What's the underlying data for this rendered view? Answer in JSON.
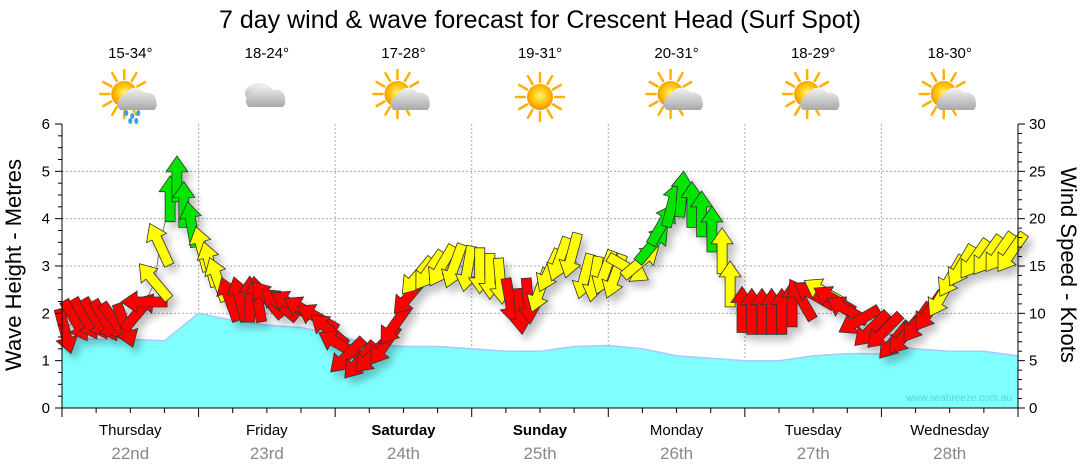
{
  "chart_data": {
    "type": "area",
    "title": "7 day wind & wave forecast for Crescent Head (Surf Spot)",
    "ylabel": "Wave Height - Metres",
    "y2label": "Wind Speed - Knots",
    "ylim": [
      0,
      6
    ],
    "y2lim": [
      0,
      30
    ],
    "yticks": [
      "0",
      "1",
      "2",
      "3",
      "4",
      "5",
      "6"
    ],
    "y2ticks": [
      "0",
      "5",
      "10",
      "15",
      "20",
      "25",
      "30"
    ],
    "grid": true,
    "watermark": "www.seabreeze.com.au",
    "colors": {
      "wave_fill": "#80ffff",
      "wave_line": "#a8c8ff",
      "red": "#ff0000",
      "yellow": "#ffff00",
      "green": "#00e400"
    },
    "days": [
      {
        "name": "Thursday",
        "date": "22nd",
        "temp": "15-34°",
        "icon": "sun-cloud-rain",
        "bold": false
      },
      {
        "name": "Friday",
        "date": "23rd",
        "temp": "18-24°",
        "icon": "cloudy",
        "bold": false
      },
      {
        "name": "Saturday",
        "date": "24th",
        "temp": "17-28°",
        "icon": "sun-cloud",
        "bold": true
      },
      {
        "name": "Sunday",
        "date": "25th",
        "temp": "19-31°",
        "icon": "sunny",
        "bold": true
      },
      {
        "name": "Monday",
        "date": "26th",
        "temp": "20-31°",
        "icon": "sun-cloud",
        "bold": false
      },
      {
        "name": "Tuesday",
        "date": "27th",
        "temp": "18-29°",
        "icon": "sun-cloud",
        "bold": false
      },
      {
        "name": "Wednesday",
        "date": "28th",
        "temp": "18-30°",
        "icon": "sun-cloud",
        "bold": false
      }
    ],
    "wave_series": {
      "name": "Wave Height (m)",
      "hours": [
        0,
        6,
        12,
        18,
        24,
        30,
        36,
        42,
        48,
        54,
        60,
        66,
        72,
        78,
        84,
        90,
        96,
        102,
        108,
        114,
        120,
        126,
        132,
        138,
        144,
        147,
        150,
        156,
        162,
        168
      ],
      "values": [
        1.5,
        1.45,
        1.45,
        1.42,
        2.0,
        1.85,
        1.75,
        1.7,
        1.55,
        1.35,
        1.3,
        1.3,
        1.25,
        1.2,
        1.2,
        1.3,
        1.32,
        1.25,
        1.1,
        1.05,
        1.0,
        1.0,
        1.1,
        1.15,
        1.15,
        1.3,
        1.25,
        1.2,
        1.2,
        1.1
      ]
    },
    "wind_series": {
      "name": "Wind Speed (knots) & direction",
      "points": [
        {
          "h": 0.5,
          "kn": 8.2,
          "dir": 165,
          "c": "red"
        },
        {
          "h": 2.3,
          "kn": 9.3,
          "dir": 150,
          "c": "red"
        },
        {
          "h": 4,
          "kn": 9.5,
          "dir": 150,
          "c": "red"
        },
        {
          "h": 5.8,
          "kn": 9.5,
          "dir": 150,
          "c": "red"
        },
        {
          "h": 7.5,
          "kn": 9.3,
          "dir": 150,
          "c": "red"
        },
        {
          "h": 9.3,
          "kn": 9.1,
          "dir": 145,
          "c": "red"
        },
        {
          "h": 11,
          "kn": 8.8,
          "dir": 160,
          "c": "red"
        },
        {
          "h": 13.4,
          "kn": 10.1,
          "dir": 40,
          "c": "red"
        },
        {
          "h": 14.6,
          "kn": 11.2,
          "dir": 270,
          "c": "red"
        },
        {
          "h": 16.3,
          "kn": 13.3,
          "dir": 320,
          "c": "yellow"
        },
        {
          "h": 17.2,
          "kn": 17.2,
          "dir": 335,
          "c": "yellow"
        },
        {
          "h": 19,
          "kn": 22,
          "dir": 0,
          "c": "green"
        },
        {
          "h": 20.2,
          "kn": 24.1,
          "dir": 0,
          "c": "green"
        },
        {
          "h": 21.4,
          "kn": 21.4,
          "dir": 0,
          "c": "green"
        },
        {
          "h": 22.8,
          "kn": 19.3,
          "dir": 350,
          "c": "green"
        },
        {
          "h": 24.6,
          "kn": 16.7,
          "dir": 345,
          "c": "yellow"
        },
        {
          "h": 26,
          "kn": 15.1,
          "dir": 345,
          "c": "yellow"
        },
        {
          "h": 27.4,
          "kn": 13.5,
          "dir": 340,
          "c": "yellow"
        },
        {
          "h": 29.5,
          "kn": 11.4,
          "dir": 340,
          "c": "red"
        },
        {
          "h": 31.3,
          "kn": 11.4,
          "dir": 345,
          "c": "red"
        },
        {
          "h": 33,
          "kn": 11.4,
          "dir": 0,
          "c": "red"
        },
        {
          "h": 34.4,
          "kn": 11.4,
          "dir": 350,
          "c": "red"
        },
        {
          "h": 36.2,
          "kn": 11.4,
          "dir": 320,
          "c": "red"
        },
        {
          "h": 38.3,
          "kn": 10.9,
          "dir": 310,
          "c": "red"
        },
        {
          "h": 40.4,
          "kn": 10.9,
          "dir": 300,
          "c": "red"
        },
        {
          "h": 42.7,
          "kn": 10.3,
          "dir": 300,
          "c": "red"
        },
        {
          "h": 45,
          "kn": 9.5,
          "dir": 300,
          "c": "red"
        },
        {
          "h": 47,
          "kn": 8.2,
          "dir": 310,
          "c": "red"
        },
        {
          "h": 48.8,
          "kn": 6.7,
          "dir": 300,
          "c": "red"
        },
        {
          "h": 50.2,
          "kn": 5.6,
          "dir": 225,
          "c": "red"
        },
        {
          "h": 52.4,
          "kn": 5.1,
          "dir": 220,
          "c": "red"
        },
        {
          "h": 54.5,
          "kn": 5.6,
          "dir": 225,
          "c": "red"
        },
        {
          "h": 56.7,
          "kn": 6.7,
          "dir": 215,
          "c": "red"
        },
        {
          "h": 58.5,
          "kn": 8.8,
          "dir": 215,
          "c": "red"
        },
        {
          "h": 61.1,
          "kn": 11.9,
          "dir": 220,
          "c": "red"
        },
        {
          "h": 62.5,
          "kn": 14,
          "dir": 220,
          "c": "yellow"
        },
        {
          "h": 64.6,
          "kn": 14.6,
          "dir": 215,
          "c": "yellow"
        },
        {
          "h": 66.8,
          "kn": 15.1,
          "dir": 210,
          "c": "yellow"
        },
        {
          "h": 69,
          "kn": 15.1,
          "dir": 200,
          "c": "yellow"
        },
        {
          "h": 71.3,
          "kn": 14.8,
          "dir": 190,
          "c": "yellow"
        },
        {
          "h": 73.4,
          "kn": 14.6,
          "dir": 180,
          "c": "yellow"
        },
        {
          "h": 75.2,
          "kn": 14,
          "dir": 180,
          "c": "yellow"
        },
        {
          "h": 77,
          "kn": 13.5,
          "dir": 175,
          "c": "yellow"
        },
        {
          "h": 78.7,
          "kn": 11.4,
          "dir": 170,
          "c": "red"
        },
        {
          "h": 80.5,
          "kn": 10.3,
          "dir": 175,
          "c": "red"
        },
        {
          "h": 81.9,
          "kn": 11.4,
          "dir": 175,
          "c": "red"
        },
        {
          "h": 84,
          "kn": 12.5,
          "dir": 200,
          "c": "yellow"
        },
        {
          "h": 85.7,
          "kn": 14.6,
          "dir": 205,
          "c": "yellow"
        },
        {
          "h": 87.5,
          "kn": 15.8,
          "dir": 200,
          "c": "yellow"
        },
        {
          "h": 89.6,
          "kn": 16.2,
          "dir": 195,
          "c": "yellow"
        },
        {
          "h": 91.9,
          "kn": 14,
          "dir": 195,
          "c": "yellow"
        },
        {
          "h": 93.6,
          "kn": 13.7,
          "dir": 190,
          "c": "yellow"
        },
        {
          "h": 95.4,
          "kn": 14.4,
          "dir": 200,
          "c": "yellow"
        },
        {
          "h": 97.2,
          "kn": 14,
          "dir": 200,
          "c": "yellow"
        },
        {
          "h": 99.4,
          "kn": 14.8,
          "dir": 120,
          "c": "yellow"
        },
        {
          "h": 101.6,
          "kn": 15.4,
          "dir": 50,
          "c": "yellow"
        },
        {
          "h": 103.7,
          "kn": 17.2,
          "dir": 40,
          "c": "green"
        },
        {
          "h": 105.4,
          "kn": 19.3,
          "dir": 30,
          "c": "green"
        },
        {
          "h": 107.2,
          "kn": 21.4,
          "dir": 15,
          "c": "green"
        },
        {
          "h": 108.9,
          "kn": 22.5,
          "dir": 5,
          "c": "green"
        },
        {
          "h": 110.7,
          "kn": 21.4,
          "dir": 0,
          "c": "green"
        },
        {
          "h": 112.4,
          "kn": 20.4,
          "dir": 0,
          "c": "green"
        },
        {
          "h": 114.2,
          "kn": 18.8,
          "dir": 0,
          "c": "green"
        },
        {
          "h": 116,
          "kn": 16.5,
          "dir": 0,
          "c": "yellow"
        },
        {
          "h": 117.4,
          "kn": 13,
          "dir": 0,
          "c": "yellow"
        },
        {
          "h": 119.5,
          "kn": 10.3,
          "dir": 0,
          "c": "red"
        },
        {
          "h": 121.2,
          "kn": 10.1,
          "dir": 0,
          "c": "red"
        },
        {
          "h": 123,
          "kn": 10.1,
          "dir": 0,
          "c": "red"
        },
        {
          "h": 124.7,
          "kn": 10.1,
          "dir": 0,
          "c": "red"
        },
        {
          "h": 126.5,
          "kn": 10.1,
          "dir": 0,
          "c": "red"
        },
        {
          "h": 128.3,
          "kn": 10.9,
          "dir": 0,
          "c": "red"
        },
        {
          "h": 130,
          "kn": 11.4,
          "dir": 330,
          "c": "red"
        },
        {
          "h": 132.3,
          "kn": 11.9,
          "dir": 300,
          "c": "red"
        },
        {
          "h": 134.1,
          "kn": 12.2,
          "dir": 300,
          "c": "yellow"
        },
        {
          "h": 135.8,
          "kn": 11.4,
          "dir": 300,
          "c": "red"
        },
        {
          "h": 138.1,
          "kn": 10.3,
          "dir": 300,
          "c": "red"
        },
        {
          "h": 140.2,
          "kn": 9.3,
          "dir": 240,
          "c": "red"
        },
        {
          "h": 142.3,
          "kn": 8.4,
          "dir": 225,
          "c": "red"
        },
        {
          "h": 144.6,
          "kn": 8.2,
          "dir": 225,
          "c": "red"
        },
        {
          "h": 146.4,
          "kn": 7.2,
          "dir": 220,
          "c": "red"
        },
        {
          "h": 148.1,
          "kn": 7.7,
          "dir": 220,
          "c": "red"
        },
        {
          "h": 150.4,
          "kn": 9.1,
          "dir": 215,
          "c": "red"
        },
        {
          "h": 152.5,
          "kn": 10.3,
          "dir": 215,
          "c": "red"
        },
        {
          "h": 154.6,
          "kn": 11.9,
          "dir": 210,
          "c": "yellow"
        },
        {
          "h": 156.4,
          "kn": 14,
          "dir": 210,
          "c": "yellow"
        },
        {
          "h": 158.1,
          "kn": 15.1,
          "dir": 210,
          "c": "yellow"
        },
        {
          "h": 160.4,
          "kn": 15.8,
          "dir": 215,
          "c": "yellow"
        },
        {
          "h": 162.7,
          "kn": 16.2,
          "dir": 215,
          "c": "yellow"
        },
        {
          "h": 164.8,
          "kn": 16.5,
          "dir": 215,
          "c": "yellow"
        },
        {
          "h": 166.9,
          "kn": 16.5,
          "dir": 215,
          "c": "yellow"
        }
      ]
    }
  }
}
